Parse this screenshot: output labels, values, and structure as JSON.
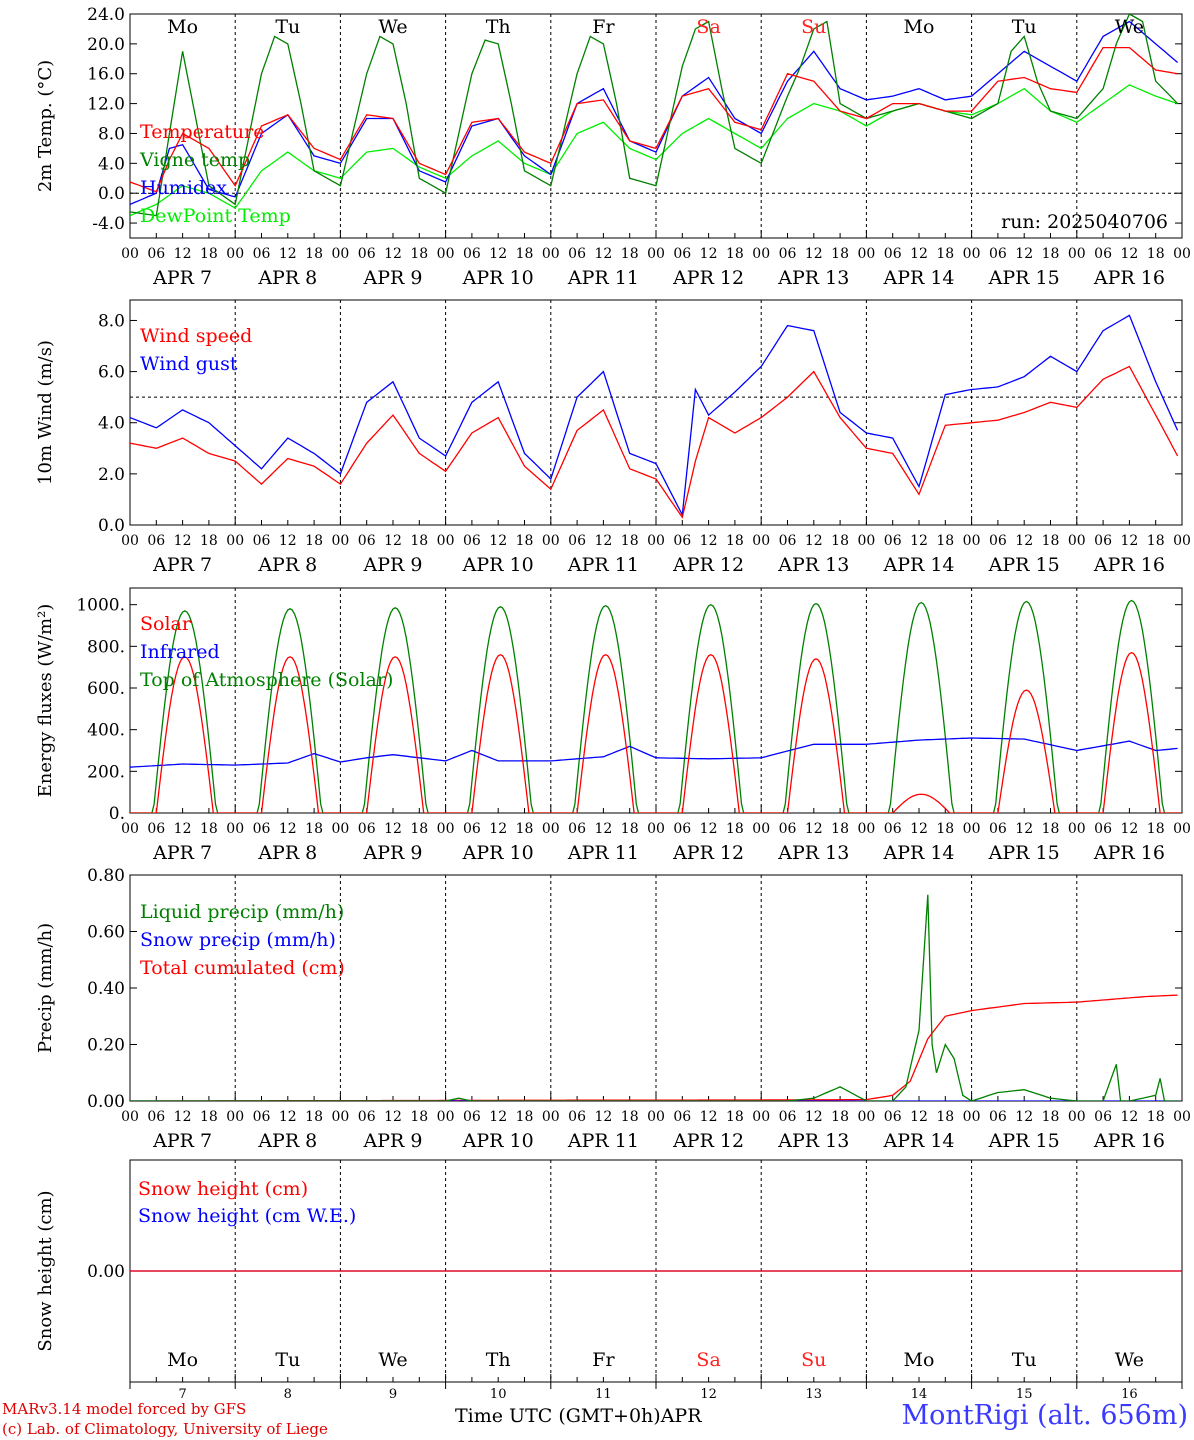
{
  "days": {
    "dates": [
      "APR 7",
      "APR 8",
      "APR 9",
      "APR 10",
      "APR 11",
      "APR 12",
      "APR 13",
      "APR 14",
      "APR 15",
      "APR 16"
    ],
    "weekdays": [
      "Mo",
      "Tu",
      "We",
      "Th",
      "Fr",
      "Sa",
      "Su",
      "Mo",
      "Tu",
      "We"
    ],
    "day_numbers": [
      "7",
      "8",
      "9",
      "10",
      "11",
      "12",
      "13",
      "14",
      "15",
      "16"
    ],
    "hour_labels": [
      "00",
      "06",
      "12",
      "18"
    ],
    "end_label": "00",
    "colors": {
      "weekday": "#000000",
      "weekend": "#ff2020"
    },
    "weekend_index": [
      5,
      6
    ]
  },
  "footer": {
    "model_line": "MARv3.14 model forced by GFS",
    "credit_line": "(c) Lab. of Climatology, University of Liege",
    "time_label": "Time UTC (GMT+0h)",
    "month_label": "APR",
    "station": "MontRigi (alt. 656m)"
  },
  "chart_data": [
    {
      "type": "line",
      "ylabel": "2m Temp. (°C)",
      "ylim": [
        -6,
        24
      ],
      "yticks": [
        "-4.0",
        "0.0",
        "4.0",
        "8.0",
        "12.0",
        "16.0",
        "20.0",
        "24.0"
      ],
      "reference_line": 0,
      "run_label": "run: 2025040706",
      "x_unit": "hours since APR 7 00 UTC",
      "series": [
        {
          "name": "Temperature",
          "color": "#ff0000",
          "x": [
            0,
            6,
            9,
            12,
            18,
            24,
            30,
            36,
            42,
            48,
            54,
            60,
            66,
            72,
            78,
            84,
            90,
            96,
            102,
            108,
            114,
            120,
            126,
            132,
            138,
            144,
            150,
            156,
            162,
            168,
            174,
            180,
            186,
            192,
            198,
            204,
            210,
            216,
            222,
            228,
            234,
            239
          ],
          "y": [
            1.5,
            0.2,
            4.5,
            8,
            6,
            1,
            9,
            10.5,
            6,
            4.5,
            10.5,
            10,
            4,
            2.5,
            9.5,
            10,
            5.5,
            4,
            12,
            12.5,
            7,
            6,
            13,
            14,
            9.5,
            8.5,
            16,
            15,
            11,
            10,
            12,
            12,
            11,
            11,
            15,
            15.5,
            14,
            13.5,
            19.5,
            19.5,
            16.5,
            16
          ]
        },
        {
          "name": "Vigne temp",
          "color": "#008000",
          "x": [
            0,
            6,
            9,
            12,
            15,
            18,
            24,
            30,
            33,
            36,
            39,
            42,
            48,
            54,
            57,
            60,
            63,
            66,
            72,
            78,
            81,
            84,
            87,
            90,
            96,
            102,
            105,
            108,
            111,
            114,
            120,
            126,
            129,
            132,
            135,
            138,
            144,
            150,
            153,
            156,
            159,
            162,
            168,
            174,
            180,
            186,
            192,
            198,
            201,
            204,
            207,
            210,
            216,
            222,
            225,
            228,
            231,
            234,
            239
          ],
          "y": [
            -2.5,
            -3,
            8,
            19,
            10,
            1,
            -1.5,
            16,
            21,
            20,
            12,
            3,
            1,
            16,
            21,
            20,
            12,
            2,
            0,
            16,
            20.5,
            20,
            12,
            3,
            1,
            16,
            21,
            20,
            12,
            2,
            1,
            17,
            22,
            23,
            14,
            6,
            4,
            13,
            17,
            22,
            23,
            12,
            10,
            11,
            12,
            11,
            10,
            12,
            19,
            21,
            15,
            11,
            10,
            14,
            20,
            24,
            23,
            15,
            12
          ]
        },
        {
          "name": "Humidex",
          "color": "#0000ff",
          "x": [
            0,
            6,
            9,
            12,
            18,
            24,
            30,
            36,
            42,
            48,
            54,
            60,
            66,
            72,
            78,
            84,
            90,
            96,
            102,
            108,
            114,
            120,
            126,
            132,
            138,
            144,
            150,
            156,
            162,
            168,
            174,
            180,
            186,
            192,
            198,
            204,
            210,
            216,
            222,
            228,
            234,
            239
          ],
          "y": [
            -1.5,
            0,
            6,
            6.5,
            0.5,
            -0.5,
            8,
            10.5,
            5,
            4,
            10,
            10,
            3,
            1.5,
            9,
            10,
            5,
            2.5,
            12,
            14,
            7,
            5.5,
            13,
            15.5,
            10,
            8,
            15,
            19,
            14,
            12.5,
            13,
            14,
            12.5,
            13,
            16,
            19,
            17,
            15,
            21,
            23,
            20,
            17.5
          ]
        },
        {
          "name": "DewPoint Temp",
          "color": "#00ee00",
          "x": [
            0,
            6,
            12,
            18,
            24,
            30,
            36,
            42,
            48,
            54,
            60,
            66,
            72,
            78,
            84,
            90,
            96,
            102,
            108,
            114,
            120,
            126,
            132,
            138,
            144,
            150,
            156,
            162,
            168,
            174,
            180,
            186,
            192,
            198,
            204,
            210,
            216,
            222,
            228,
            234,
            239
          ],
          "y": [
            -3,
            -1.5,
            1,
            0,
            -2,
            3,
            5.5,
            3,
            2,
            5.5,
            6,
            3.5,
            2,
            5,
            7,
            4,
            2.5,
            8,
            9.5,
            6,
            4.5,
            8,
            10,
            8,
            6,
            10,
            12,
            11,
            9,
            11,
            12,
            11,
            10.5,
            12,
            14,
            11,
            9.5,
            12,
            14.5,
            13,
            12
          ]
        }
      ]
    },
    {
      "type": "line",
      "ylabel": "10m Wind (m/s)",
      "ylim": [
        0,
        8.8
      ],
      "yticks": [
        "0.0",
        "2.0",
        "4.0",
        "6.0",
        "8.0"
      ],
      "reference_line": 5,
      "x_unit": "hours since APR 7 00 UTC",
      "series": [
        {
          "name": "Wind speed",
          "color": "#ff0000",
          "x": [
            0,
            6,
            12,
            18,
            24,
            30,
            36,
            42,
            48,
            54,
            60,
            66,
            72,
            78,
            84,
            90,
            96,
            102,
            108,
            114,
            120,
            126,
            129,
            132,
            138,
            144,
            150,
            156,
            162,
            168,
            174,
            180,
            186,
            192,
            198,
            204,
            210,
            216,
            222,
            228,
            234,
            239
          ],
          "y": [
            3.2,
            3,
            3.4,
            2.8,
            2.5,
            1.6,
            2.6,
            2.3,
            1.6,
            3.2,
            4.3,
            2.8,
            2.1,
            3.6,
            4.2,
            2.3,
            1.4,
            3.7,
            4.5,
            2.2,
            1.8,
            0.3,
            2.5,
            4.2,
            3.6,
            4.2,
            5,
            6,
            4.2,
            3,
            2.8,
            1.2,
            3.9,
            4,
            4.1,
            4.4,
            4.8,
            4.6,
            5.7,
            6.2,
            4.3,
            2.7
          ]
        },
        {
          "name": "Wind gust",
          "color": "#0000ff",
          "x": [
            0,
            6,
            12,
            18,
            24,
            30,
            36,
            42,
            48,
            54,
            60,
            66,
            72,
            78,
            84,
            90,
            96,
            102,
            108,
            114,
            120,
            126,
            129,
            132,
            138,
            144,
            150,
            156,
            162,
            168,
            174,
            180,
            186,
            192,
            198,
            204,
            210,
            216,
            222,
            228,
            234,
            239
          ],
          "y": [
            4.2,
            3.8,
            4.5,
            4,
            3.1,
            2.2,
            3.4,
            2.8,
            2,
            4.8,
            5.6,
            3.4,
            2.7,
            4.8,
            5.6,
            2.8,
            1.8,
            5,
            6,
            2.8,
            2.4,
            0.4,
            5.3,
            4.3,
            5.2,
            6.2,
            7.8,
            7.6,
            4.4,
            3.6,
            3.4,
            1.5,
            5.1,
            5.3,
            5.4,
            5.8,
            6.6,
            6,
            7.6,
            8.2,
            5.6,
            3.7
          ]
        }
      ]
    },
    {
      "type": "line",
      "ylabel": "Energy fluxes (W/m²)",
      "ylim": [
        0,
        1080
      ],
      "yticks": [
        "0.",
        "200.",
        "400.",
        "600.",
        "800.",
        "1000."
      ],
      "x_unit": "hours since APR 7 00 UTC",
      "series": [
        {
          "name": "Solar",
          "color": "#ff0000",
          "peak_hour": 12.5,
          "halfwidth": 6.5,
          "peaks": [
            750,
            750,
            750,
            760,
            760,
            760,
            740,
            90,
            590,
            770
          ]
        },
        {
          "name": "Infrared",
          "color": "#0000ff",
          "x": [
            0,
            12,
            24,
            36,
            42,
            48,
            54,
            60,
            72,
            78,
            84,
            96,
            108,
            114,
            120,
            132,
            144,
            156,
            168,
            180,
            192,
            204,
            216,
            228,
            234,
            239
          ],
          "y": [
            220,
            235,
            230,
            240,
            285,
            245,
            265,
            280,
            250,
            300,
            250,
            250,
            270,
            320,
            265,
            260,
            265,
            330,
            330,
            350,
            360,
            355,
            300,
            345,
            300,
            310
          ]
        },
        {
          "name": "Top of Atmosphere (Solar)",
          "color": "#008000",
          "peak_hour": 12.5,
          "halfwidth": 7.2,
          "peaks": [
            970,
            980,
            985,
            990,
            995,
            1000,
            1005,
            1010,
            1015,
            1020
          ]
        }
      ]
    },
    {
      "type": "line",
      "ylabel": "Precip (mm/h)",
      "ylim": [
        0,
        0.8
      ],
      "yticks": [
        "0.00",
        "0.20",
        "0.40",
        "0.60",
        "0.80"
      ],
      "x_unit": "hours since APR 7 00 UTC",
      "series": [
        {
          "name": "Liquid precip (mm/h)",
          "color": "#008000",
          "x": [
            0,
            72,
            75,
            78,
            144,
            150,
            156,
            162,
            168,
            174,
            177,
            180,
            182,
            183,
            184,
            186,
            188,
            190,
            192,
            198,
            204,
            210,
            216,
            222,
            225,
            226,
            228,
            234,
            235,
            236,
            239
          ],
          "y": [
            0,
            0,
            0.01,
            0,
            0,
            0,
            0.01,
            0.05,
            0,
            0,
            0.05,
            0.25,
            0.73,
            0.2,
            0.1,
            0.2,
            0.15,
            0.02,
            0,
            0.03,
            0.04,
            0.01,
            0,
            0,
            0.13,
            0,
            0,
            0.02,
            0.08,
            0,
            0
          ]
        },
        {
          "name": "Snow precip (mm/h)",
          "color": "#0000ff",
          "x": [
            0,
            239
          ],
          "y": [
            0,
            0
          ]
        },
        {
          "name": "Total cumulated (cm)",
          "color": "#ff0000",
          "x": [
            0,
            72,
            156,
            168,
            174,
            178,
            182,
            186,
            192,
            204,
            216,
            228,
            232,
            239
          ],
          "y": [
            0,
            0.002,
            0.004,
            0.005,
            0.02,
            0.07,
            0.22,
            0.3,
            0.32,
            0.345,
            0.35,
            0.365,
            0.37,
            0.375
          ]
        }
      ]
    },
    {
      "type": "line",
      "ylabel": "Snow height (cm)",
      "ylim": [
        -1,
        1
      ],
      "yticks": [
        "0.00"
      ],
      "x_unit": "hours since APR 7 00 UTC",
      "series": [
        {
          "name": "Snow height (cm)",
          "color": "#ff0000",
          "x": [
            0,
            240
          ],
          "y": [
            0,
            0
          ]
        },
        {
          "name": "Snow height (cm W.E.)",
          "color": "#0000ff",
          "x": [
            0,
            240
          ],
          "y": [
            0,
            0
          ]
        }
      ]
    }
  ]
}
